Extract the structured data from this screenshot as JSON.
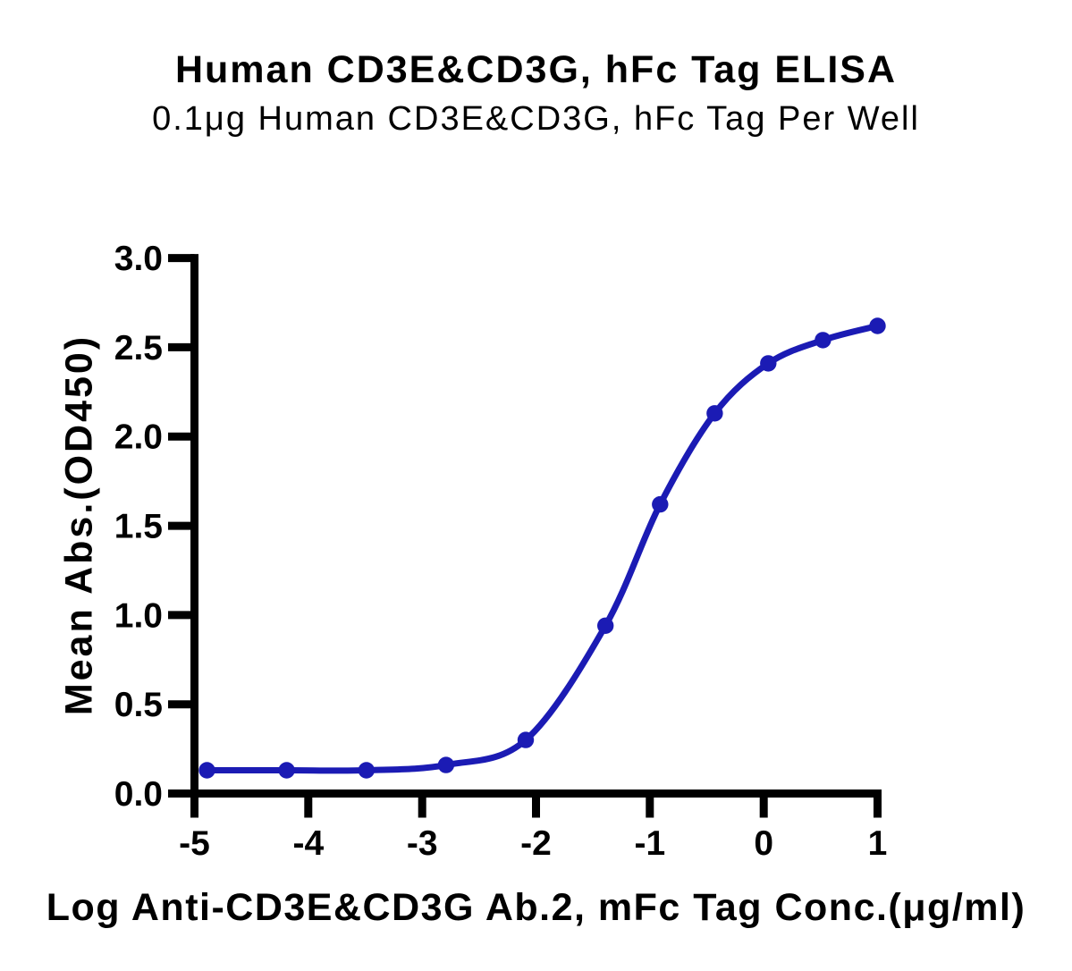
{
  "chart_data": {
    "type": "line",
    "title": "Human CD3E&CD3G, hFc Tag ELISA",
    "subtitle": "0.1μg Human CD3E&CD3G, hFc Tag Per Well",
    "xlabel": "Log Anti-CD3E&CD3G Ab.2, mFc Tag Conc.(μg/ml)",
    "ylabel": "Mean Abs.(OD450)",
    "x": [
      -4.89,
      -4.19,
      -3.49,
      -2.79,
      -2.09,
      -1.39,
      -0.91,
      -0.43,
      0.04,
      0.52,
      1.0
    ],
    "y": [
      0.13,
      0.13,
      0.13,
      0.16,
      0.3,
      0.94,
      1.62,
      2.13,
      2.41,
      2.54,
      2.62
    ],
    "xlim": [
      -5,
      1
    ],
    "ylim": [
      0,
      3
    ],
    "xticks": [
      -5,
      -4,
      -3,
      -2,
      -1,
      0,
      1
    ],
    "xtick_labels": [
      "-5",
      "-4",
      "-3",
      "-2",
      "-1",
      "0",
      "1"
    ],
    "yticks": [
      0,
      0.5,
      1,
      1.5,
      2,
      2.5,
      3
    ],
    "ytick_labels": [
      "0.0",
      "0.5",
      "1.0",
      "1.5",
      "2.0",
      "2.5",
      "3.0"
    ],
    "series_color": "#1B1BB4",
    "axis_color": "#000000",
    "background_color": "#ffffff",
    "marker": "circle",
    "grid": false,
    "legend": null
  }
}
